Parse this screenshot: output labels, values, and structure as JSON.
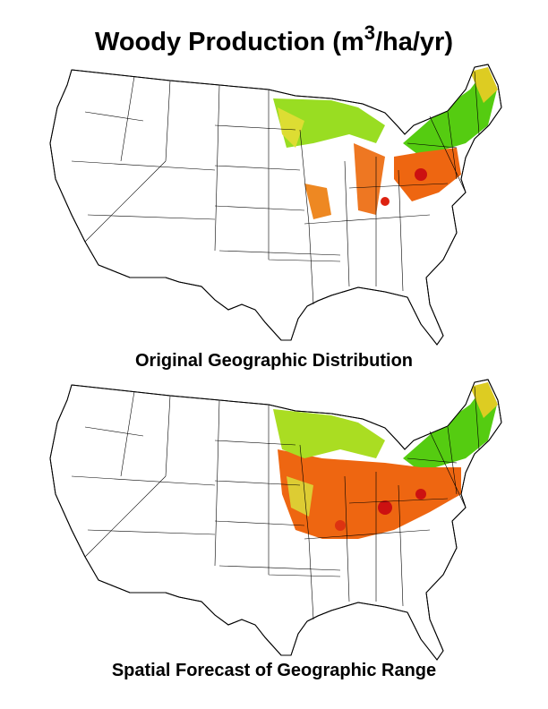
{
  "title": {
    "prefix": "Woody Production (m",
    "superscript": "3",
    "suffix": "/ha/yr)"
  },
  "maps": [
    {
      "caption": "Original Geographic Distribution"
    },
    {
      "caption": "Spatial Forecast of Geographic Range"
    }
  ]
}
